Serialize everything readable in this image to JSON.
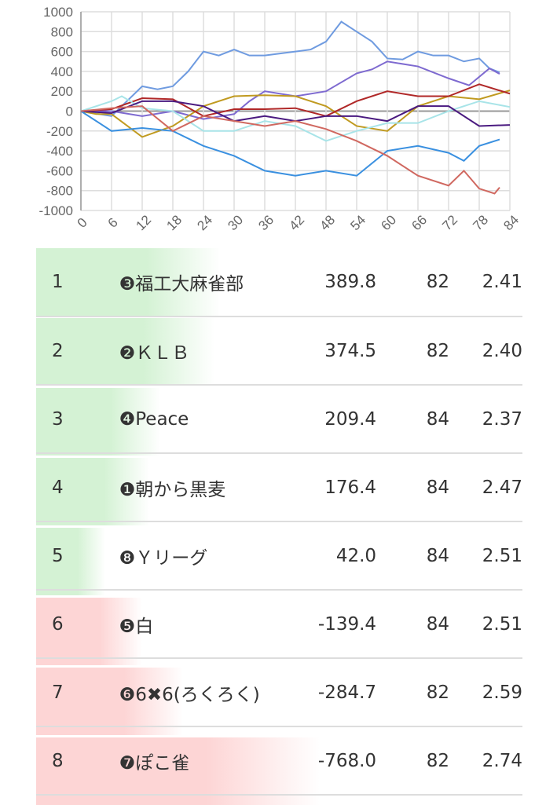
{
  "chart_data": {
    "type": "line",
    "xlim": [
      0,
      84
    ],
    "ylim": [
      -1000,
      1000
    ],
    "xticks": [
      "0",
      "6",
      "12",
      "18",
      "24",
      "30",
      "36",
      "42",
      "48",
      "54",
      "60",
      "66",
      "72",
      "78",
      "84"
    ],
    "yticks": [
      "1000",
      "800",
      "600",
      "400",
      "200",
      "0",
      "-200",
      "-400",
      "-600",
      "-800",
      "-1000"
    ],
    "grid": true,
    "series": [
      {
        "name": "福工大麻雀部",
        "color": "#6f9be0",
        "x": [
          0,
          6,
          9,
          12,
          15,
          18,
          21,
          24,
          27,
          30,
          33,
          36,
          39,
          42,
          45,
          48,
          51,
          54,
          57,
          60,
          63,
          66,
          69,
          72,
          75,
          78,
          80,
          82
        ],
        "y": [
          0,
          -50,
          100,
          250,
          220,
          250,
          400,
          600,
          560,
          620,
          560,
          560,
          580,
          600,
          620,
          700,
          900,
          800,
          700,
          530,
          520,
          600,
          560,
          560,
          500,
          530,
          430,
          390
        ]
      },
      {
        "name": "KLB",
        "color": "#7e6ad0",
        "x": [
          0,
          6,
          12,
          18,
          24,
          30,
          33,
          36,
          42,
          48,
          54,
          57,
          60,
          66,
          72,
          76,
          80,
          82
        ],
        "y": [
          0,
          0,
          -50,
          0,
          -80,
          -30,
          100,
          200,
          150,
          200,
          380,
          420,
          500,
          450,
          330,
          260,
          430,
          375
        ]
      },
      {
        "name": "Peace",
        "color": "#c09a20",
        "x": [
          0,
          3,
          6,
          12,
          18,
          24,
          30,
          36,
          42,
          48,
          54,
          60,
          66,
          72,
          78,
          84
        ],
        "y": [
          0,
          -30,
          -30,
          -260,
          -150,
          50,
          150,
          160,
          150,
          50,
          -150,
          -200,
          50,
          150,
          120,
          209
        ]
      },
      {
        "name": "朝から黒麦",
        "color": "#b02828",
        "x": [
          0,
          6,
          12,
          18,
          24,
          30,
          36,
          42,
          48,
          54,
          60,
          66,
          72,
          78,
          84
        ],
        "y": [
          0,
          20,
          130,
          120,
          -50,
          20,
          20,
          30,
          -50,
          100,
          200,
          150,
          150,
          270,
          176
        ]
      },
      {
        "name": "Yリーグ",
        "color": "#a8e4e8",
        "x": [
          0,
          6,
          8,
          12,
          18,
          24,
          30,
          36,
          42,
          48,
          54,
          60,
          66,
          72,
          78,
          84
        ],
        "y": [
          0,
          100,
          150,
          30,
          0,
          -200,
          -200,
          -100,
          -150,
          -300,
          -200,
          -120,
          -120,
          0,
          100,
          42
        ]
      },
      {
        "name": "白",
        "color": "#4a1a80",
        "x": [
          0,
          6,
          12,
          18,
          24,
          30,
          36,
          42,
          48,
          54,
          60,
          66,
          72,
          78,
          84
        ],
        "y": [
          0,
          -20,
          100,
          100,
          50,
          -100,
          -50,
          -100,
          -50,
          -50,
          -100,
          50,
          50,
          -150,
          -139
        ]
      },
      {
        "name": "6✖6(ろくろく)",
        "color": "#3a90e0",
        "x": [
          0,
          6,
          12,
          18,
          24,
          30,
          36,
          42,
          48,
          54,
          60,
          66,
          72,
          75,
          78,
          82
        ],
        "y": [
          0,
          -200,
          -170,
          -200,
          -350,
          -450,
          -600,
          -650,
          -600,
          -650,
          -400,
          -350,
          -420,
          -500,
          -350,
          -285
        ]
      },
      {
        "name": "ぽこ雀",
        "color": "#d06860",
        "x": [
          0,
          6,
          12,
          18,
          24,
          30,
          36,
          42,
          48,
          54,
          60,
          66,
          72,
          75,
          78,
          81,
          82
        ],
        "y": [
          0,
          30,
          50,
          -200,
          -50,
          -100,
          -150,
          -100,
          -180,
          -300,
          -450,
          -650,
          -750,
          -600,
          -780,
          -830,
          -768
        ]
      }
    ]
  },
  "standings": [
    {
      "rank": "1",
      "name": "❸福工大麻雀部",
      "score": "389.8",
      "games": "82",
      "avg": "2.41",
      "value": 389.8
    },
    {
      "rank": "2",
      "name": "❷ＫＬＢ",
      "score": "374.5",
      "games": "82",
      "avg": "2.40",
      "value": 374.5
    },
    {
      "rank": "3",
      "name": "❹Peace",
      "score": "209.4",
      "games": "84",
      "avg": "2.37",
      "value": 209.4
    },
    {
      "rank": "4",
      "name": "❶朝から黒麦",
      "score": "176.4",
      "games": "84",
      "avg": "2.47",
      "value": 176.4
    },
    {
      "rank": "5",
      "name": "❽Ｙリーグ",
      "score": "42.0",
      "games": "84",
      "avg": "2.51",
      "value": 42.0
    },
    {
      "rank": "6",
      "name": "❺白",
      "score": "-139.4",
      "games": "84",
      "avg": "2.51",
      "value": -139.4
    },
    {
      "rank": "7",
      "name": "❻6✖6(ろくろく)",
      "score": "-284.7",
      "games": "82",
      "avg": "2.59",
      "value": -284.7
    },
    {
      "rank": "8",
      "name": "❼ぽこ雀",
      "score": "-768.0",
      "games": "82",
      "avg": "2.74",
      "value": -768.0
    }
  ],
  "colors": {
    "positive": "#d4f2d4",
    "negative": "#fdd5d5"
  }
}
